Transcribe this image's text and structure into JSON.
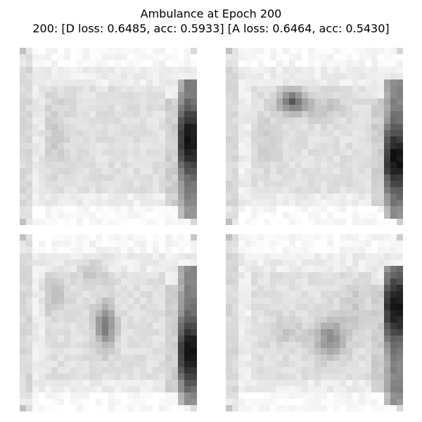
{
  "figure": {
    "title": "Ambulance at Epoch 200",
    "subtitle": "200: [D loss: 0.6485, acc: 0.5933]  [A loss: 0.6464, acc: 0.5430]"
  },
  "colormap": "gray_r",
  "images": [
    {
      "id": "sample-1"
    },
    {
      "id": "sample-2"
    },
    {
      "id": "sample-3"
    },
    {
      "id": "sample-4"
    }
  ]
}
